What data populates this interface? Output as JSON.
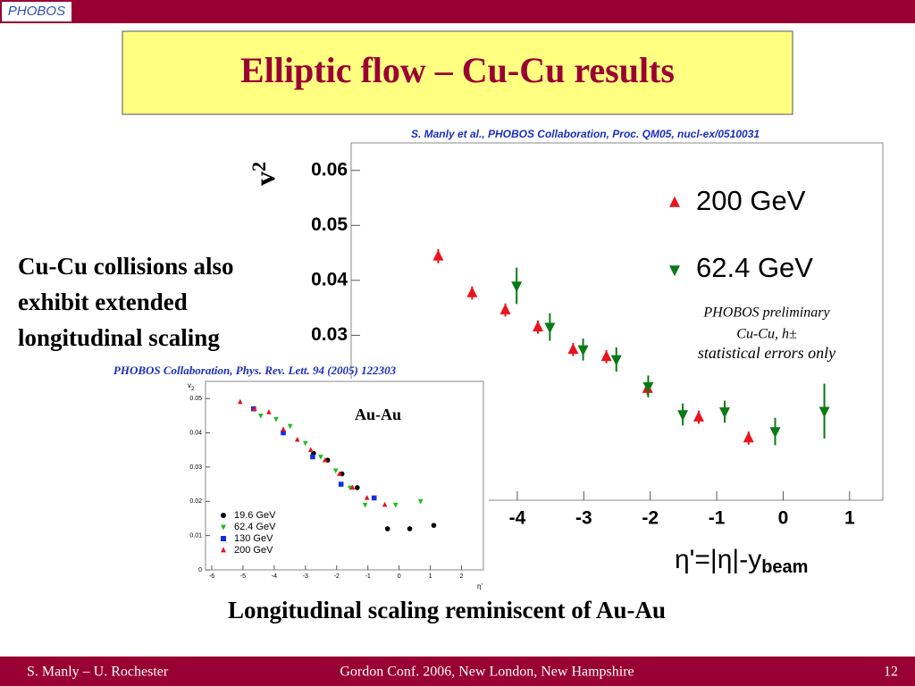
{
  "slide": {
    "logo": "PHOBOS",
    "title": "Elliptic flow – Cu-Cu results",
    "side_text": [
      "Cu-Cu collisions also",
      "exhibit extended",
      "longitudinal scaling"
    ],
    "conclusion": "Longitudinal scaling reminiscent of Au-Au",
    "footer": {
      "left": "S. Manly – U. Rochester",
      "center": "Gordon Conf. 2006, New London, New Hampshire",
      "page": "12"
    }
  },
  "chart_data": [
    {
      "type": "scatter",
      "citation": "S. Manly et al., PHOBOS Collaboration, Proc. QM05, nucl-ex/0510031",
      "y_label": "v",
      "y_label_sub": "2",
      "x_label": "η'=|η|-y",
      "x_label_sub": "beam",
      "annotations": [
        "PHOBOS preliminary",
        "Cu-Cu, h±",
        "statistical errors only"
      ],
      "xlim": [
        -6.5,
        1.5
      ],
      "ylim": [
        0,
        0.065
      ],
      "xticks": [
        -4,
        -3,
        -2,
        -1,
        0,
        1
      ],
      "yticks": [
        0.03,
        0.04,
        0.05,
        0.06
      ],
      "series": [
        {
          "name": "200 GeV",
          "color": "#e8141e",
          "marker": "triangle-up",
          "x": [
            -5.19,
            -4.68,
            -4.18,
            -3.69,
            -3.16,
            -2.66,
            -2.04,
            -1.27,
            -0.52
          ],
          "values": [
            0.0444,
            0.0377,
            0.0346,
            0.0315,
            0.0274,
            0.0261,
            0.0203,
            0.0151,
            0.0113
          ],
          "errors": [
            0.0013,
            0.0012,
            0.0012,
            0.0012,
            0.0012,
            0.0012,
            0.0012,
            0.0012,
            0.0012
          ]
        },
        {
          "name": "62.4 GeV",
          "color": "#0a7a14",
          "marker": "triangle-down",
          "x": [
            -4.01,
            -3.51,
            -3.01,
            -2.51,
            -2.03,
            -1.51,
            -0.88,
            -0.12,
            0.62
          ],
          "values": [
            0.039,
            0.0315,
            0.0274,
            0.0256,
            0.0207,
            0.0156,
            0.0161,
            0.0125,
            0.0162
          ],
          "errors": [
            0.0033,
            0.0025,
            0.002,
            0.0022,
            0.002,
            0.002,
            0.002,
            0.0025,
            0.005
          ]
        }
      ]
    },
    {
      "type": "scatter",
      "citation": "PHOBOS Collaboration, Phys. Rev. Lett. 94 (2005) 122303",
      "y_label": "v",
      "y_label_sub": "2",
      "x_label": "η'",
      "annotations": [
        "Au-Au"
      ],
      "xlim": [
        -6.2,
        2.7
      ],
      "ylim": [
        0,
        0.055
      ],
      "xticks": [
        -6,
        -5,
        -4,
        -3,
        -2,
        -1,
        0,
        1,
        2
      ],
      "yticks": [
        0,
        0.01,
        0.02,
        0.03,
        0.04,
        0.05
      ],
      "series": [
        {
          "name": "19.6 GeV",
          "color": "#000000",
          "marker": "circle",
          "x": [
            -2.74,
            -2.29,
            -1.83,
            -1.34,
            -0.37,
            0.34,
            1.11
          ],
          "values": [
            0.034,
            0.032,
            0.028,
            0.024,
            0.012,
            0.012,
            0.013
          ]
        },
        {
          "name": "62.4 GeV",
          "color": "#18c018",
          "marker": "triangle-down",
          "x": [
            -4.43,
            -3.94,
            -3.49,
            -3.0,
            -2.51,
            -2.03,
            -1.57,
            -1.09,
            -0.11,
            0.69
          ],
          "values": [
            0.045,
            0.044,
            0.042,
            0.037,
            0.033,
            0.029,
            0.024,
            0.019,
            0.019,
            0.02
          ]
        },
        {
          "name": "130 GeV",
          "color": "#1030e0",
          "marker": "square",
          "x": [
            -4.66,
            -3.71,
            -2.77,
            -1.86,
            -0.8
          ],
          "values": [
            0.047,
            0.04,
            0.033,
            0.025,
            0.021
          ]
        },
        {
          "name": "200 GeV",
          "color": "#e8141e",
          "marker": "triangle-up",
          "x": [
            -5.09,
            -4.63,
            -4.17,
            -3.71,
            -3.26,
            -2.83,
            -2.37,
            -1.91,
            -1.49,
            -1.03,
            -0.46
          ],
          "values": [
            0.049,
            0.047,
            0.046,
            0.041,
            0.038,
            0.035,
            0.032,
            0.028,
            0.024,
            0.021,
            0.019
          ]
        }
      ]
    }
  ]
}
